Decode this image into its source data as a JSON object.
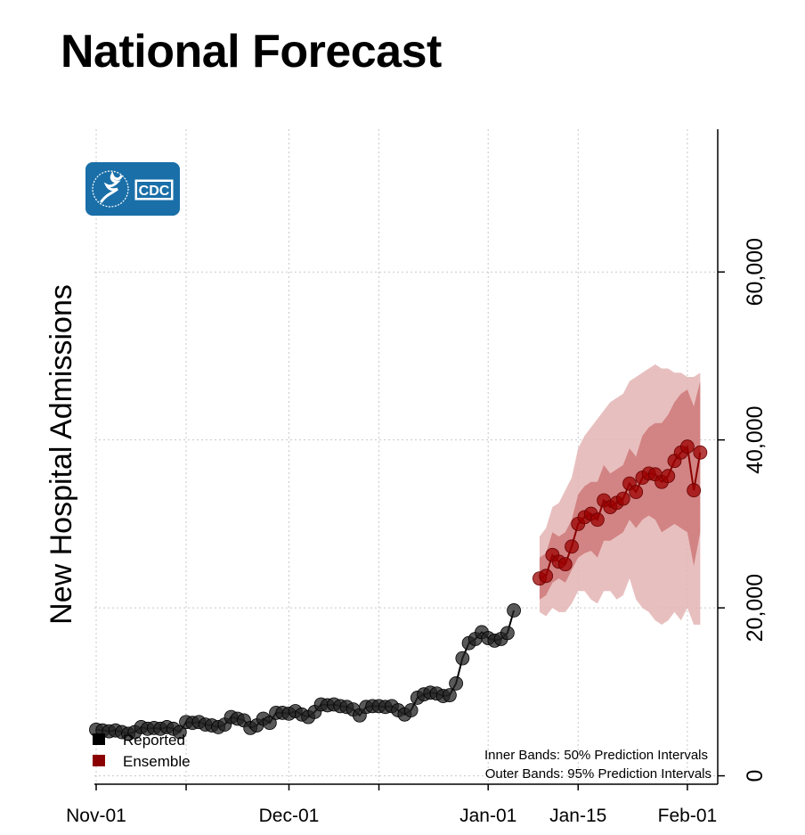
{
  "title": "National Forecast",
  "logo": {
    "text": "CDC",
    "color": "#1a6fa8"
  },
  "legend": {
    "items": [
      {
        "label": "Reported",
        "color": "#000000"
      },
      {
        "label": "Ensemble",
        "color": "#8b0000"
      }
    ],
    "notes": [
      "Inner Bands: 50% Prediction Intervals",
      "Outer Bands: 95% Prediction Intervals"
    ]
  },
  "chart_data": {
    "type": "line",
    "title": "National Forecast",
    "ylabel": "New Hospital Admissions",
    "xlabel": "",
    "x_ticks": [
      "Nov-01",
      "Dec-01",
      "Jan-01",
      "Jan-15",
      "Feb-01"
    ],
    "y_ticks": [
      "0",
      "20,000",
      "40,000",
      "60,000"
    ],
    "ylim": [
      -1000,
      77000
    ],
    "grid": true,
    "legend_position": "bottom-left",
    "y_axis_side": "right",
    "series": [
      {
        "name": "Reported",
        "color": "#000000",
        "points": [
          [
            "2021-11-01",
            5500
          ],
          [
            "2021-11-02",
            5400
          ],
          [
            "2021-11-03",
            5300
          ],
          [
            "2021-11-04",
            5400
          ],
          [
            "2021-11-05",
            5200
          ],
          [
            "2021-11-06",
            5000
          ],
          [
            "2021-11-07",
            5200
          ],
          [
            "2021-11-08",
            5800
          ],
          [
            "2021-11-09",
            5600
          ],
          [
            "2021-11-10",
            5700
          ],
          [
            "2021-11-11",
            5600
          ],
          [
            "2021-11-12",
            5800
          ],
          [
            "2021-11-13",
            5600
          ],
          [
            "2021-11-14",
            5200
          ],
          [
            "2021-11-15",
            6400
          ],
          [
            "2021-11-16",
            6300
          ],
          [
            "2021-11-17",
            6400
          ],
          [
            "2021-11-18",
            6100
          ],
          [
            "2021-11-19",
            6000
          ],
          [
            "2021-11-20",
            5800
          ],
          [
            "2021-11-21",
            6100
          ],
          [
            "2021-11-22",
            7000
          ],
          [
            "2021-11-23",
            6800
          ],
          [
            "2021-11-24",
            6600
          ],
          [
            "2021-11-25",
            5700
          ],
          [
            "2021-11-26",
            6000
          ],
          [
            "2021-11-27",
            6800
          ],
          [
            "2021-11-28",
            6300
          ],
          [
            "2021-11-29",
            7500
          ],
          [
            "2021-11-30",
            7500
          ],
          [
            "2021-12-01",
            7400
          ],
          [
            "2021-12-02",
            7700
          ],
          [
            "2021-12-03",
            7300
          ],
          [
            "2021-12-04",
            7000
          ],
          [
            "2021-12-05",
            7600
          ],
          [
            "2021-12-06",
            8500
          ],
          [
            "2021-12-07",
            8400
          ],
          [
            "2021-12-08",
            8500
          ],
          [
            "2021-12-09",
            8300
          ],
          [
            "2021-12-10",
            8200
          ],
          [
            "2021-12-11",
            7900
          ],
          [
            "2021-12-12",
            7200
          ],
          [
            "2021-12-13",
            8200
          ],
          [
            "2021-12-14",
            8300
          ],
          [
            "2021-12-15",
            8300
          ],
          [
            "2021-12-16",
            8200
          ],
          [
            "2021-12-17",
            8300
          ],
          [
            "2021-12-18",
            7800
          ],
          [
            "2021-12-19",
            7300
          ],
          [
            "2021-12-20",
            7800
          ],
          [
            "2021-12-21",
            9300
          ],
          [
            "2021-12-22",
            9700
          ],
          [
            "2021-12-23",
            9900
          ],
          [
            "2021-12-24",
            9800
          ],
          [
            "2021-12-25",
            9500
          ],
          [
            "2021-12-26",
            9600
          ],
          [
            "2021-12-27",
            11000
          ],
          [
            "2021-12-28",
            14000
          ],
          [
            "2021-12-29",
            15800
          ],
          [
            "2021-12-30",
            16300
          ],
          [
            "2021-12-31",
            17100
          ],
          [
            "2022-01-01",
            16400
          ],
          [
            "2022-01-02",
            16100
          ],
          [
            "2022-01-03",
            16300
          ],
          [
            "2022-01-04",
            17000
          ],
          [
            "2022-01-05",
            19700
          ]
        ]
      },
      {
        "name": "Ensemble",
        "color": "#8b0000",
        "points": [
          [
            "2022-01-09",
            23500
          ],
          [
            "2022-01-10",
            23800
          ],
          [
            "2022-01-11",
            26300
          ],
          [
            "2022-01-12",
            25500
          ],
          [
            "2022-01-13",
            25200
          ],
          [
            "2022-01-14",
            27300
          ],
          [
            "2022-01-15",
            30000
          ],
          [
            "2022-01-16",
            30800
          ],
          [
            "2022-01-17",
            31200
          ],
          [
            "2022-01-18",
            30500
          ],
          [
            "2022-01-19",
            32800
          ],
          [
            "2022-01-20",
            32000
          ],
          [
            "2022-01-21",
            32500
          ],
          [
            "2022-01-22",
            33000
          ],
          [
            "2022-01-23",
            34800
          ],
          [
            "2022-01-24",
            33800
          ],
          [
            "2022-01-25",
            35500
          ],
          [
            "2022-01-26",
            36000
          ],
          [
            "2022-01-27",
            35900
          ],
          [
            "2022-01-28",
            35000
          ],
          [
            "2022-01-29",
            35700
          ],
          [
            "2022-01-30",
            37500
          ],
          [
            "2022-01-31",
            38500
          ],
          [
            "2022-02-01",
            39200
          ],
          [
            "2022-02-02",
            34000
          ],
          [
            "2022-02-03",
            38500
          ]
        ],
        "band_50": {
          "lower": [
            21000,
            21500,
            23000,
            23500,
            23000,
            24500,
            26000,
            26500,
            26800,
            26000,
            28000,
            28000,
            28500,
            29000,
            30500,
            29500,
            30500,
            31000,
            30500,
            29000,
            29500,
            30000,
            29500,
            29000,
            25000,
            29000
          ],
          "upper": [
            26000,
            26500,
            29000,
            28500,
            29000,
            30500,
            33500,
            34500,
            35000,
            35000,
            37000,
            36000,
            36500,
            37000,
            39000,
            38000,
            40500,
            41500,
            42000,
            42000,
            43000,
            44500,
            45500,
            46000,
            44000,
            47000
          ]
        },
        "band_95": {
          "lower": [
            19500,
            19000,
            20000,
            19500,
            19500,
            20500,
            22000,
            22000,
            21000,
            20500,
            22000,
            22000,
            21000,
            21500,
            23500,
            21000,
            20000,
            19500,
            18500,
            18000,
            18500,
            19500,
            18500,
            20000,
            18000,
            18000
          ],
          "upper": [
            28500,
            29500,
            32000,
            32500,
            34000,
            35500,
            39000,
            40500,
            41500,
            42500,
            43500,
            44500,
            45000,
            45500,
            47000,
            47500,
            48000,
            48500,
            49000,
            48500,
            48500,
            48000,
            48000,
            47500,
            47500,
            48000
          ]
        }
      }
    ]
  }
}
